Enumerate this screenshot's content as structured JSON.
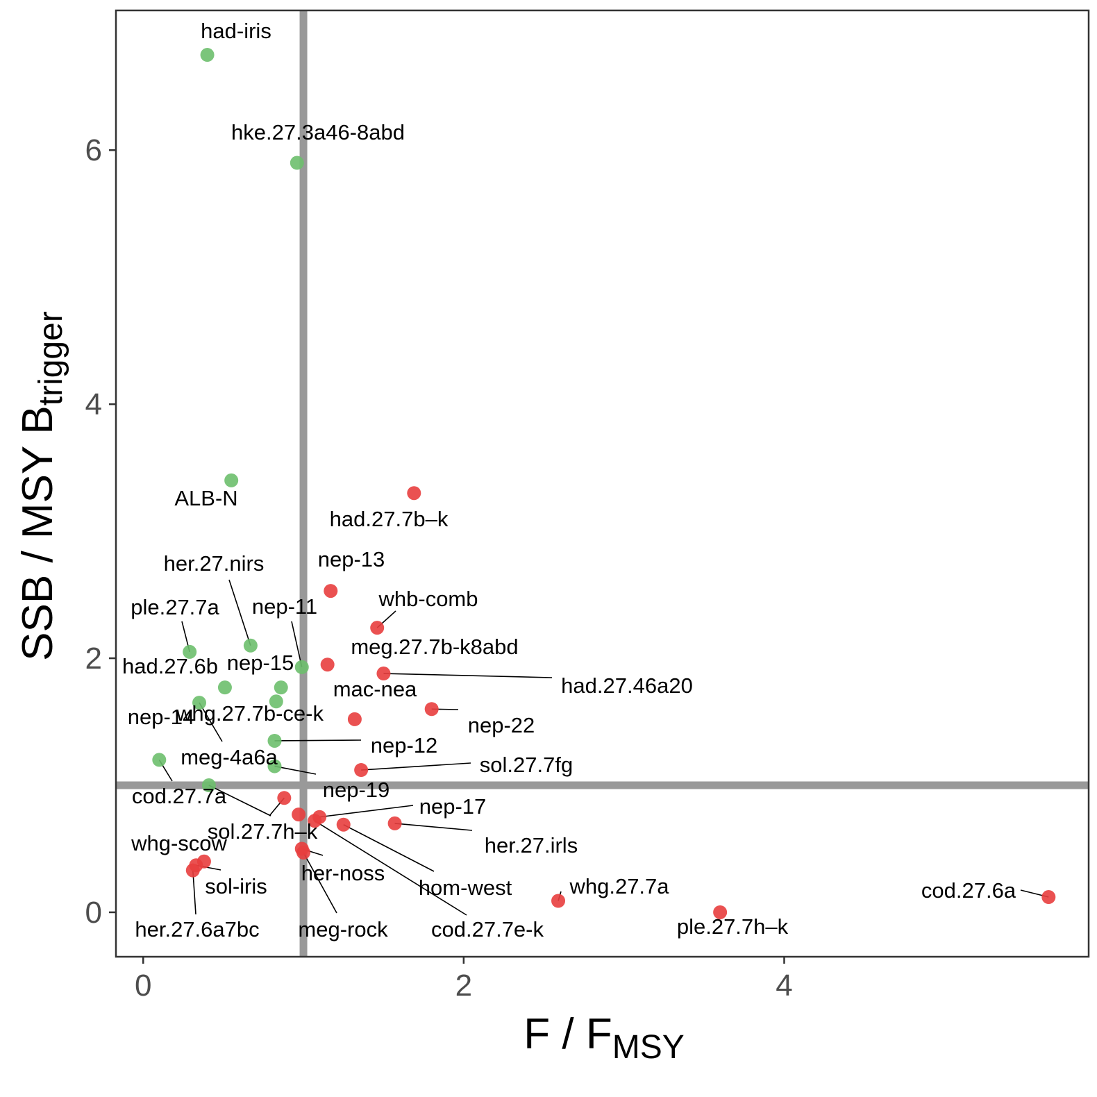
{
  "chart_data": {
    "type": "scatter",
    "title": "",
    "xlabel": {
      "main": "F / F",
      "sub": "MSY"
    },
    "ylabel": {
      "main": "SSB / MSY B",
      "sub": "trigger"
    },
    "xlim": [
      -0.17,
      5.9
    ],
    "ylim": [
      -0.35,
      7.1
    ],
    "x_ticks": [
      0,
      2,
      4
    ],
    "y_ticks": [
      0,
      2,
      4,
      6
    ],
    "x_tick_labels": [
      "0",
      "2",
      "4"
    ],
    "y_tick_labels": [
      "0",
      "2",
      "4",
      "6"
    ],
    "grid": false,
    "reference_lines": {
      "x": 1.0,
      "y": 1.0,
      "color": "#999999"
    },
    "colors": {
      "green": "#6dbf6d",
      "red": "#e83e3e"
    },
    "series": [
      {
        "status": "green",
        "points": [
          {
            "label": "had-iris",
            "x": 0.4,
            "y": 6.75
          },
          {
            "label": "hke.27.3a46-8abd",
            "x": 0.96,
            "y": 5.9
          },
          {
            "label": "ALB-N",
            "x": 0.55,
            "y": 3.4
          },
          {
            "label": "her.27.nirs",
            "x": 0.67,
            "y": 2.1
          },
          {
            "label": "ple.27.7a",
            "x": 0.29,
            "y": 2.05
          },
          {
            "label": "nep-11",
            "x": 0.99,
            "y": 1.93
          },
          {
            "label": "had.27.6b",
            "x": 0.51,
            "y": 1.77
          },
          {
            "label": "nep-15",
            "x": 0.86,
            "y": 1.77
          },
          {
            "label": "nep-14",
            "x": 0.35,
            "y": 1.65
          },
          {
            "label": "whg.27.7b-ce-k",
            "x": 0.83,
            "y": 1.66
          },
          {
            "label": "nep-12",
            "x": 0.82,
            "y": 1.35
          },
          {
            "label": "meg-4a6a",
            "x": 0.82,
            "y": 1.15
          },
          {
            "label": "cod.27.7a",
            "x": 0.1,
            "y": 1.2
          },
          {
            "label": "",
            "x": 0.41,
            "y": 1.0
          }
        ]
      },
      {
        "status": "red",
        "points": [
          {
            "label": "had.27.7b–k",
            "x": 1.69,
            "y": 3.3
          },
          {
            "label": "nep-13",
            "x": 1.17,
            "y": 2.53
          },
          {
            "label": "whb-comb",
            "x": 1.46,
            "y": 2.24
          },
          {
            "label": "meg.27.7b-k8abd",
            "x": 1.15,
            "y": 1.95
          },
          {
            "label": "had.27.46a20",
            "x": 1.5,
            "y": 1.88
          },
          {
            "label": "nep-22",
            "x": 1.8,
            "y": 1.6
          },
          {
            "label": "mac-nea",
            "x": 1.32,
            "y": 1.52
          },
          {
            "label": "sol.27.7fg",
            "x": 1.36,
            "y": 1.12
          },
          {
            "label": "sol.27.7h–k",
            "x": 0.88,
            "y": 0.9
          },
          {
            "label": "nep-19",
            "x": 0.97,
            "y": 0.77
          },
          {
            "label": "nep-17",
            "x": 1.1,
            "y": 0.75
          },
          {
            "label": "hom-west",
            "x": 1.25,
            "y": 0.69
          },
          {
            "label": "her.27.irls",
            "x": 1.57,
            "y": 0.7
          },
          {
            "label": "her-noss",
            "x": 0.99,
            "y": 0.5
          },
          {
            "label": "whg-scow",
            "x": 0.38,
            "y": 0.4
          },
          {
            "label": "sol-iris",
            "x": 0.33,
            "y": 0.37
          },
          {
            "label": "her.27.6a7bc",
            "x": 0.31,
            "y": 0.33
          },
          {
            "label": "whg.27.7a",
            "x": 2.59,
            "y": 0.09
          },
          {
            "label": "ple.27.7h–k",
            "x": 3.6,
            "y": 0.0
          },
          {
            "label": "cod.27.6a",
            "x": 5.65,
            "y": 0.12
          },
          {
            "label": "meg-rock",
            "x": 1.0,
            "y": 0.47
          },
          {
            "label": "cod.27.7e-k",
            "x": 1.07,
            "y": 0.72
          }
        ]
      }
    ]
  }
}
